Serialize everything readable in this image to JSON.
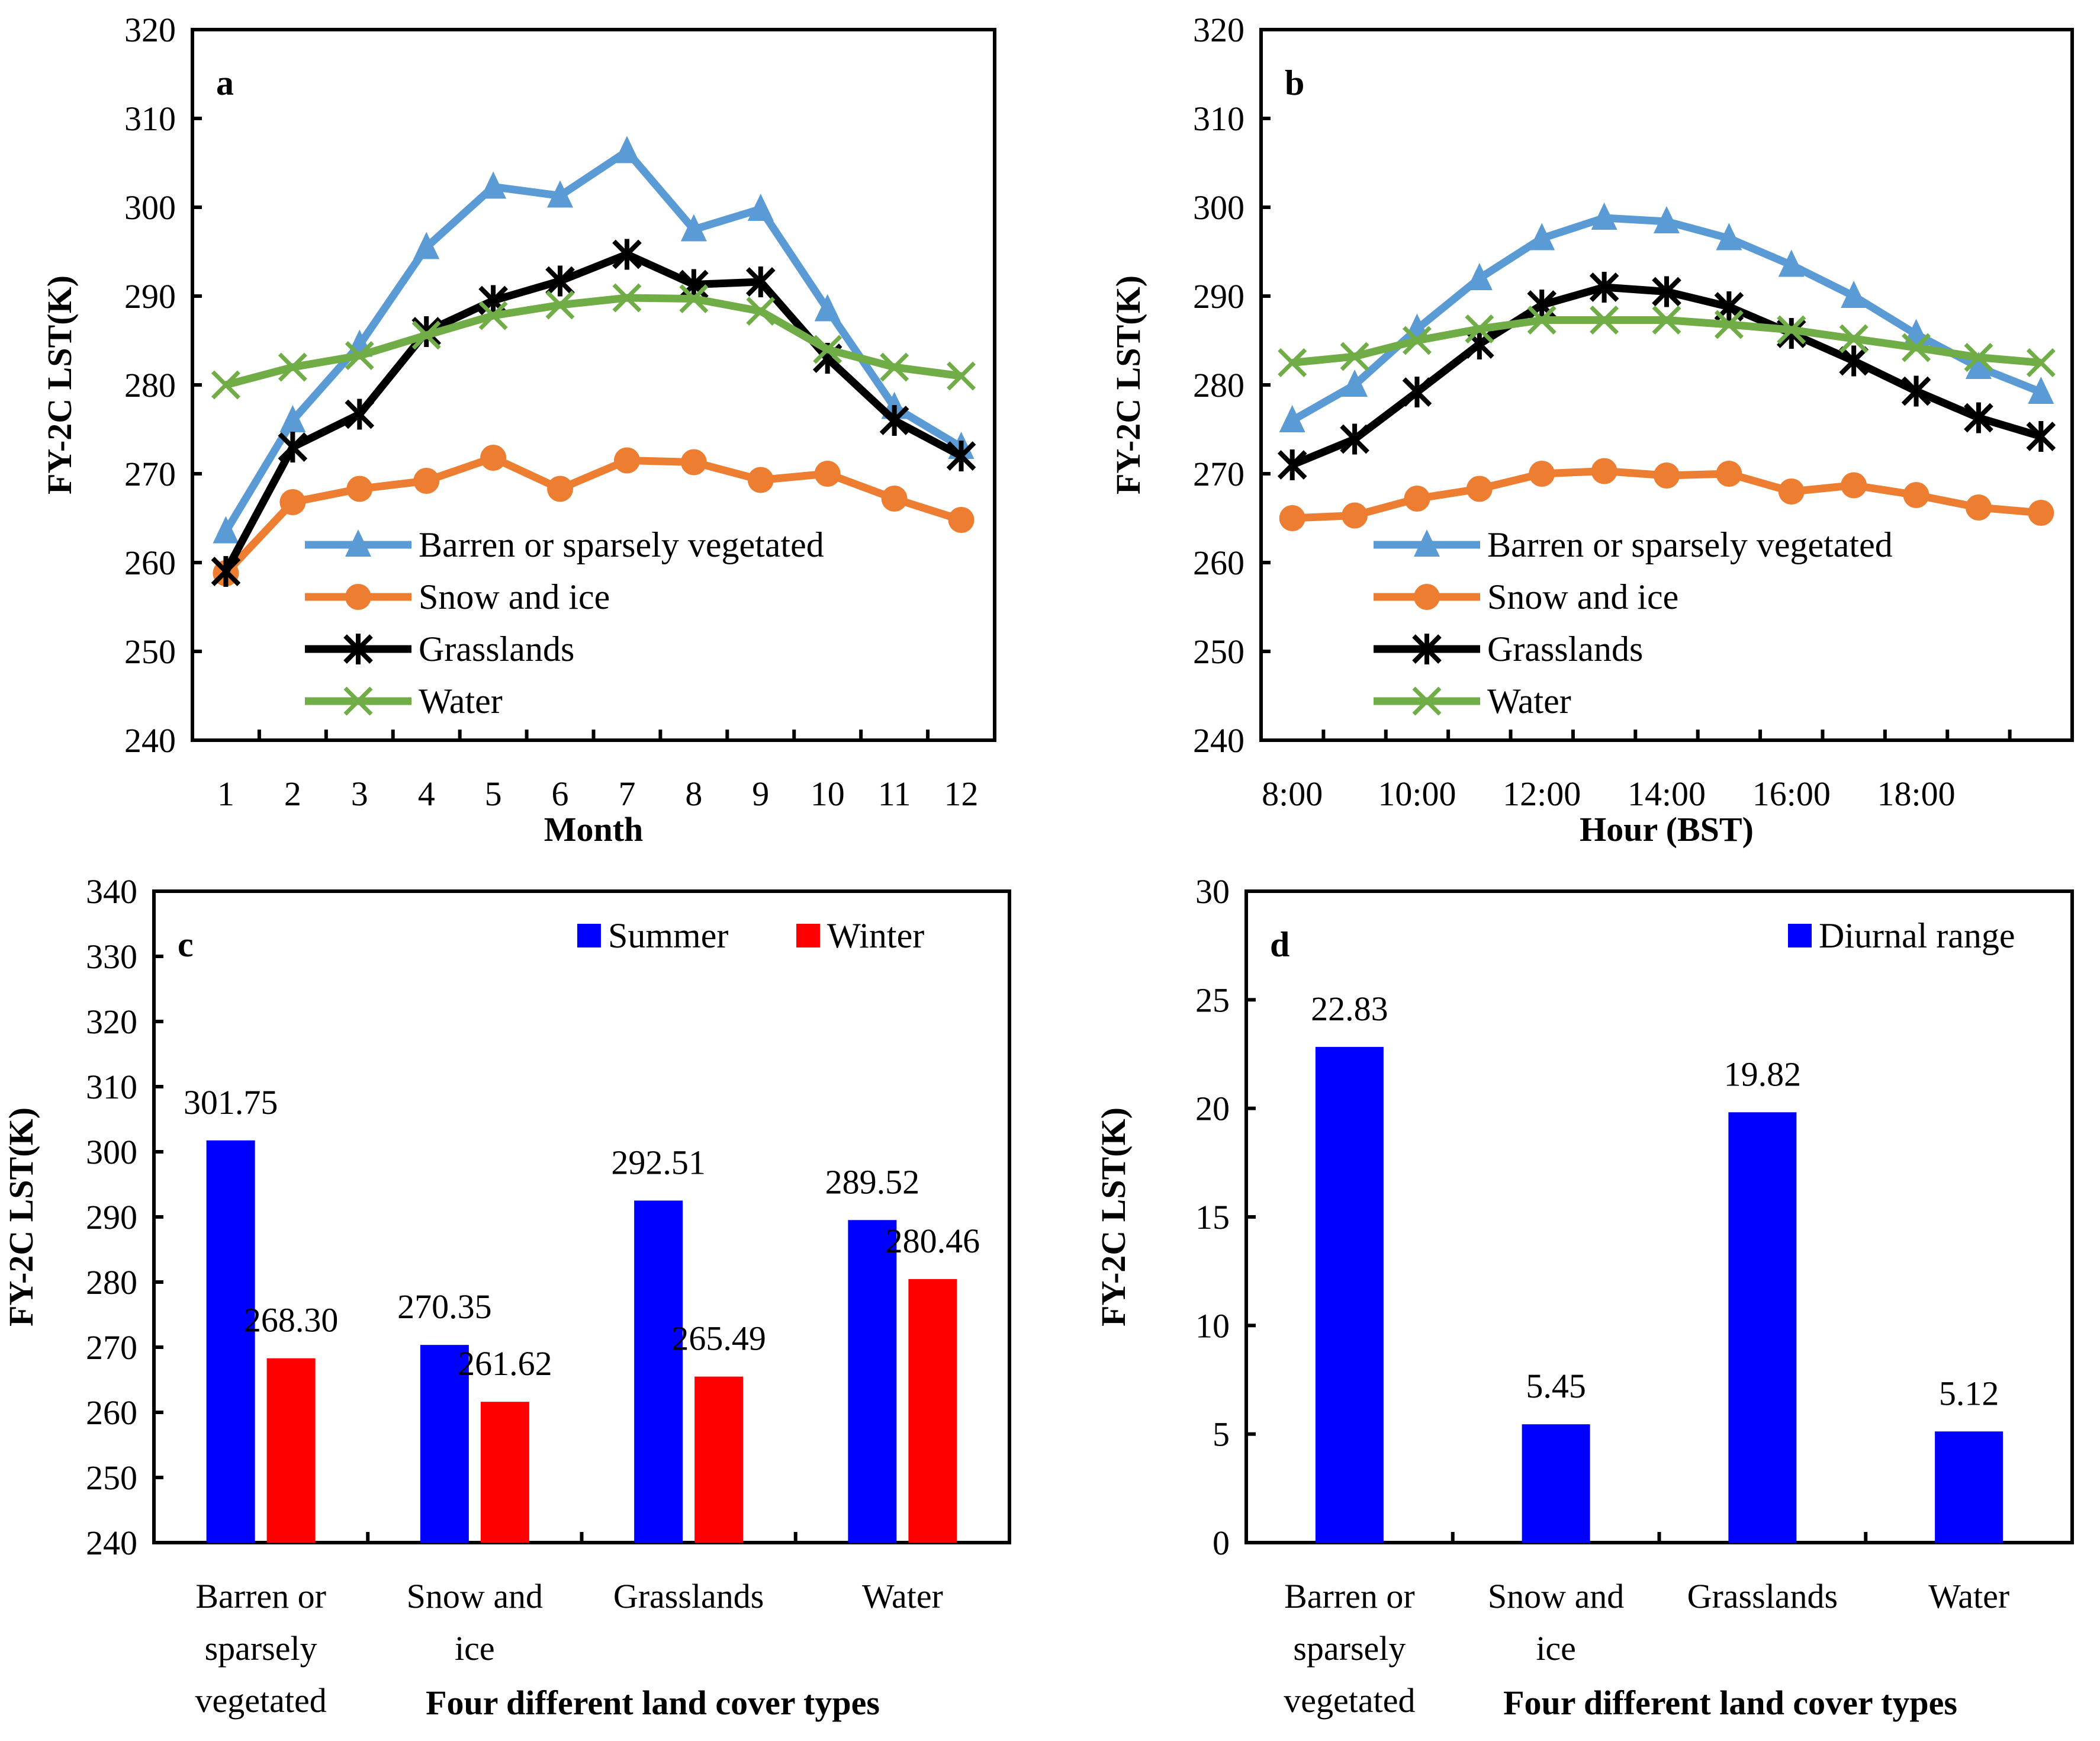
{
  "chart_data": [
    {
      "id": "a",
      "type": "line",
      "panel_label": "a",
      "xlabel": "Month",
      "ylabel": "FY-2C LST(K)",
      "ylim": [
        240,
        320
      ],
      "yticks": [
        240,
        250,
        260,
        270,
        280,
        290,
        300,
        310,
        320
      ],
      "x": [
        "1",
        "2",
        "3",
        "4",
        "5",
        "6",
        "7",
        "8",
        "9",
        "10",
        "11",
        "12"
      ],
      "xtick_labels": [
        "1",
        "2",
        "3",
        "4",
        "5",
        "6",
        "7",
        "8",
        "9",
        "10",
        "11",
        "12"
      ],
      "legend_position": "bottom-center",
      "series": [
        {
          "name": "Barren or sparsely vegetated",
          "color": "#5B9BD5",
          "marker": "triangle",
          "values": [
            263.5,
            276,
            284.5,
            295.5,
            302.3,
            301.3,
            306.3,
            297.5,
            299.8,
            288.5,
            277.5,
            273
          ]
        },
        {
          "name": "Snow and ice",
          "color": "#ED7D31",
          "marker": "circle",
          "values": [
            258.8,
            266.8,
            268.3,
            269.2,
            271.8,
            268.3,
            271.5,
            271.3,
            269.3,
            270,
            267.2,
            264.8
          ]
        },
        {
          "name": "Grasslands",
          "color": "#000000",
          "marker": "star",
          "values": [
            259,
            273,
            276.7,
            286,
            289.5,
            291.7,
            294.7,
            291.3,
            291.6,
            283,
            276,
            272
          ]
        },
        {
          "name": "Water",
          "color": "#70AD47",
          "marker": "x",
          "values": [
            280,
            282,
            283.3,
            285.6,
            287.8,
            289,
            289.8,
            289.7,
            288.3,
            284,
            282,
            281
          ]
        }
      ]
    },
    {
      "id": "b",
      "type": "line",
      "panel_label": "b",
      "xlabel": "Hour (BST)",
      "ylabel": "FY-2C LST(K)",
      "ylim": [
        240,
        320
      ],
      "yticks": [
        240,
        250,
        260,
        270,
        280,
        290,
        300,
        310,
        320
      ],
      "x": [
        "8:00",
        "9:00",
        "10:00",
        "11:00",
        "12:00",
        "13:00",
        "14:00",
        "15:00",
        "16:00",
        "17:00",
        "18:00",
        "19:00",
        "20:00"
      ],
      "xtick_labels": [
        "8:00",
        "",
        "10:00",
        "",
        "12:00",
        "",
        "14:00",
        "",
        "16:00",
        "",
        "18:00",
        "",
        ""
      ],
      "legend_position": "bottom-center",
      "series": [
        {
          "name": "Barren or sparsely vegetated",
          "color": "#5B9BD5",
          "marker": "triangle",
          "values": [
            276,
            280,
            286.3,
            292,
            296.5,
            298.8,
            298.4,
            296.5,
            293.5,
            290,
            285.7,
            282,
            279.2
          ]
        },
        {
          "name": "Snow and ice",
          "color": "#ED7D31",
          "marker": "circle",
          "values": [
            265,
            265.3,
            267.2,
            268.3,
            270,
            270.3,
            269.8,
            270,
            268,
            268.7,
            267.6,
            266.2,
            265.6
          ]
        },
        {
          "name": "Grasslands",
          "color": "#000000",
          "marker": "star",
          "values": [
            271,
            273.9,
            279.2,
            284.6,
            289,
            291,
            290.5,
            288.8,
            285.8,
            282.7,
            279.3,
            276.3,
            274.2
          ]
        },
        {
          "name": "Water",
          "color": "#70AD47",
          "marker": "x",
          "values": [
            282.5,
            283.2,
            285,
            286.3,
            287.3,
            287.3,
            287.3,
            286.8,
            286.2,
            285.2,
            284.2,
            283.1,
            282.5
          ]
        }
      ]
    },
    {
      "id": "c",
      "type": "bar",
      "panel_label": "c",
      "xlabel": "Four different land cover types",
      "ylabel": "FY-2C LST(K)",
      "ylim": [
        240,
        340
      ],
      "yticks": [
        240,
        250,
        260,
        270,
        280,
        290,
        300,
        310,
        320,
        330,
        340
      ],
      "categories": [
        [
          "Barren or",
          "sparsely",
          "vegetated"
        ],
        [
          "Snow and",
          "ice"
        ],
        [
          "Grasslands"
        ],
        [
          "Water"
        ]
      ],
      "legend_position": "top-right",
      "series": [
        {
          "name": "Summer",
          "color": "#0000FF",
          "values": [
            301.75,
            270.35,
            292.51,
            289.52
          ],
          "labels": [
            "301.75",
            "270.35",
            "292.51",
            "289.52"
          ]
        },
        {
          "name": "Winter",
          "color": "#FF0000",
          "values": [
            268.3,
            261.62,
            265.49,
            280.46
          ],
          "labels": [
            "268.30",
            "261.62",
            "265.49",
            "280.46"
          ]
        }
      ]
    },
    {
      "id": "d",
      "type": "bar",
      "panel_label": "d",
      "xlabel": "Four different land cover types",
      "ylabel": "FY-2C LST(K)",
      "ylim": [
        0,
        30
      ],
      "yticks": [
        0,
        5,
        10,
        15,
        20,
        25,
        30
      ],
      "categories": [
        [
          "Barren or",
          "sparsely",
          "vegetated"
        ],
        [
          "Snow and",
          "ice"
        ],
        [
          "Grasslands"
        ],
        [
          "Water"
        ]
      ],
      "legend_position": "top-right",
      "series": [
        {
          "name": "Diurnal range",
          "color": "#0000FF",
          "values": [
            22.83,
            5.45,
            19.82,
            5.12
          ],
          "labels": [
            "22.83",
            "5.45",
            "19.82",
            "5.12"
          ]
        }
      ]
    }
  ]
}
